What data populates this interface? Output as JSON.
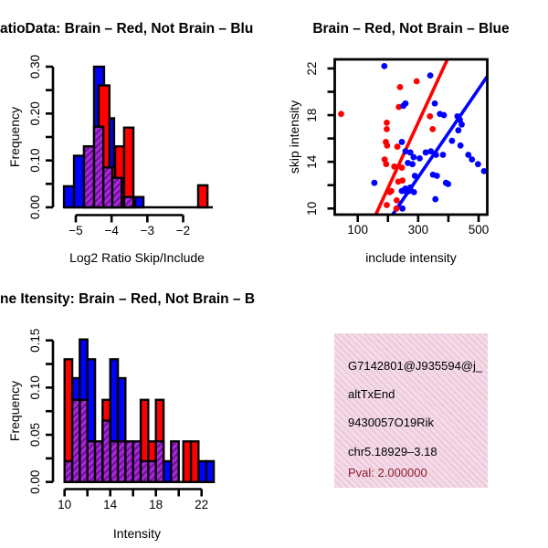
{
  "background": "#ffffff",
  "colors": {
    "red": "#ff0000",
    "blue": "#0000ff",
    "purple": "#aa28dd",
    "purple_stripe": "#6e1095",
    "axis": "#000000",
    "info_bg": "#f8d8ec",
    "info_stripe": "#b8b394",
    "pval_text": "#8e1b2e",
    "info_text": "#000000"
  },
  "chart_data": [
    {
      "id": "ratio-histogram",
      "type": "bar",
      "title": "atioData: Brain – Red, Not Brain – Blu",
      "xlabel": "Log2 Ratio Skip/Include",
      "ylabel": "Frequency",
      "xlim": [
        -5.33,
        -1.17
      ],
      "ylim": [
        0,
        0.3
      ],
      "grid": false,
      "x_ticks": [
        -5,
        -4,
        -3,
        -2
      ],
      "x_tick_labels": [
        {
          "v": -5,
          "label": "−5"
        },
        {
          "v": -4,
          "label": "−4"
        },
        {
          "v": -3,
          "label": "−3"
        },
        {
          "v": -2,
          "label": "−2"
        }
      ],
      "y_ticks": [
        0,
        0.05,
        0.1,
        0.15,
        0.2,
        0.25,
        0.3
      ],
      "y_tick_labels": [
        {
          "v": 0,
          "label": "0.00"
        },
        {
          "v": 0.1,
          "label": "0.10"
        },
        {
          "v": 0.2,
          "label": "0.20"
        },
        {
          "v": 0.3,
          "label": "0.30"
        }
      ],
      "series": [
        {
          "name": "Not Brain (blue)",
          "color_key": "blue",
          "hatched": false,
          "bars": [
            [
              -5.33,
              -5.05,
              0.045
            ],
            [
              -5.05,
              -4.77,
              0.11
            ],
            [
              -4.77,
              -4.49,
              0.13
            ],
            [
              -4.49,
              -4.21,
              0.3
            ],
            [
              -4.21,
              -3.93,
              0.19
            ],
            [
              -3.34,
              -3.11,
              0.022
            ]
          ]
        },
        {
          "name": "Brain (red)",
          "color_key": "red",
          "hatched": false,
          "bars": [
            [
              -4.36,
              -4.06,
              0.26
            ],
            [
              -4.06,
              -3.9,
              0.085
            ],
            [
              -3.9,
              -3.65,
              0.13
            ],
            [
              -3.65,
              -3.39,
              0.17
            ],
            [
              -1.58,
              -1.32,
              0.047
            ]
          ]
        },
        {
          "name": "Overlap (purple hatched)",
          "color_key": "purple",
          "hatched": true,
          "bars": [
            [
              -4.77,
              -4.49,
              0.13
            ],
            [
              -4.49,
              -4.23,
              0.172
            ],
            [
              -4.23,
              -3.98,
              0.085
            ],
            [
              -3.98,
              -3.72,
              0.063
            ],
            [
              -3.65,
              -3.39,
              0.022
            ]
          ]
        }
      ]
    },
    {
      "id": "intensity-scatter",
      "type": "scatter",
      "title": "Brain – Red, Not Brain – Blue",
      "xlabel": "include intensity",
      "ylabel": "skip intensity",
      "xlim": [
        50,
        540
      ],
      "ylim": [
        9.5,
        23
      ],
      "grid": false,
      "box": true,
      "x_ticks": [
        100,
        200,
        300,
        400,
        500
      ],
      "x_tick_labels": [
        {
          "v": 100,
          "label": "100"
        },
        {
          "v": 300,
          "label": "300"
        },
        {
          "v": 500,
          "label": "500"
        }
      ],
      "y_ticks": [
        10,
        12,
        14,
        16,
        18,
        20,
        22
      ],
      "y_tick_labels": [
        {
          "v": 10,
          "label": "10"
        },
        {
          "v": 14,
          "label": "14"
        },
        {
          "v": 18,
          "label": "18"
        },
        {
          "v": 22,
          "label": "22"
        }
      ],
      "series": [
        {
          "name": "Brain (red)",
          "color_key": "red",
          "fit_line": [
            [
              160,
              9.5
            ],
            [
              397,
              22.8
            ]
          ],
          "points": [
            [
              45,
              18.1
            ],
            [
              240,
              20.4
            ],
            [
              295,
              20.9
            ],
            [
              236,
              18.7
            ],
            [
              196,
              17.35
            ],
            [
              196,
              16.8
            ],
            [
              193,
              15.7
            ],
            [
              197,
              15.4
            ],
            [
              231,
              15.3
            ],
            [
              339,
              17.9
            ],
            [
              348,
              16.8
            ],
            [
              189,
              14.2
            ],
            [
              194,
              13.8
            ],
            [
              221,
              13.6
            ],
            [
              246,
              13.5
            ],
            [
              234,
              12.3
            ],
            [
              248,
              12.4
            ],
            [
              206,
              11.4
            ],
            [
              211,
              11.5
            ],
            [
              229,
              10.7
            ],
            [
              196,
              10.3
            ],
            [
              228,
              10.0
            ]
          ]
        },
        {
          "name": "Not Brain (blue)",
          "color_key": "blue",
          "fit_line": [
            [
              216,
              9.5
            ],
            [
              528,
              21.3
            ]
          ],
          "points": [
            [
              188,
              22.2
            ],
            [
              340,
              21.4
            ],
            [
              258,
              19.0
            ],
            [
              251,
              18.8
            ],
            [
              355,
              19.0
            ],
            [
              372,
              18.1
            ],
            [
              385,
              18.0
            ],
            [
              430,
              17.9
            ],
            [
              438,
              17.6
            ],
            [
              444,
              17.2
            ],
            [
              433,
              16.7
            ],
            [
              412,
              15.8
            ],
            [
              440,
              15.4
            ],
            [
              246,
              15.7
            ],
            [
              258,
              14.9
            ],
            [
              274,
              14.8
            ],
            [
              325,
              14.8
            ],
            [
              342,
              14.9
            ],
            [
              359,
              14.6
            ],
            [
              382,
              14.6
            ],
            [
              466,
              14.6
            ],
            [
              285,
              14.4
            ],
            [
              305,
              14.3
            ],
            [
              478,
              14.2
            ],
            [
              498,
              13.8
            ],
            [
              518,
              13.2
            ],
            [
              266,
              13.9
            ],
            [
              281,
              13.8
            ],
            [
              289,
              12.8
            ],
            [
              349,
              12.9
            ],
            [
              362,
              12.8
            ],
            [
              392,
              12.2
            ],
            [
              399,
              12.1
            ],
            [
              155,
              12.2
            ],
            [
              258,
              11.7
            ],
            [
              274,
              11.8
            ],
            [
              246,
              11.5
            ],
            [
              254,
              11.6
            ],
            [
              262,
              11.4
            ],
            [
              270,
              11.5
            ],
            [
              286,
              11.4
            ],
            [
              357,
              10.8
            ],
            [
              248,
              10.0
            ]
          ]
        }
      ]
    },
    {
      "id": "intensity-histogram",
      "type": "bar",
      "title": "ne Itensity: Brain – Red, Not Brain – B",
      "xlabel": "Intensity",
      "ylabel": "Frequency",
      "xlim": [
        10,
        23.1
      ],
      "ylim": [
        0,
        0.15
      ],
      "grid": false,
      "x_ticks": [
        10,
        12,
        14,
        16,
        18,
        20,
        22
      ],
      "x_tick_labels": [
        {
          "v": 10,
          "label": "10"
        },
        {
          "v": 14,
          "label": "14"
        },
        {
          "v": 18,
          "label": "18"
        },
        {
          "v": 22,
          "label": "22"
        }
      ],
      "y_ticks": [
        0,
        0.025,
        0.05,
        0.075,
        0.1,
        0.125,
        0.15
      ],
      "y_tick_labels": [
        {
          "v": 0,
          "label": "0.00"
        },
        {
          "v": 0.05,
          "label": "0.05"
        },
        {
          "v": 0.1,
          "label": "0.10"
        },
        {
          "v": 0.15,
          "label": "0.15"
        }
      ],
      "series": [
        {
          "name": "Not Brain (blue)",
          "color_key": "blue",
          "hatched": false,
          "bars": [
            [
              10.67,
              11.33,
              0.11
            ],
            [
              11.33,
              12.0,
              0.151
            ],
            [
              12.0,
              12.67,
              0.13
            ],
            [
              14.0,
              14.67,
              0.13
            ],
            [
              14.67,
              15.33,
              0.11
            ],
            [
              18.67,
              19.33,
              0.022
            ],
            [
              21.73,
              22.4,
              0.022
            ],
            [
              22.4,
              23.07,
              0.022
            ]
          ]
        },
        {
          "name": "Brain (red)",
          "color_key": "red",
          "hatched": false,
          "bars": [
            [
              10.0,
              10.67,
              0.13
            ],
            [
              13.33,
              14.0,
              0.087
            ],
            [
              16.67,
              17.33,
              0.087
            ],
            [
              17.33,
              18.0,
              0.043
            ],
            [
              18.0,
              18.67,
              0.087
            ],
            [
              20.4,
              21.07,
              0.043
            ],
            [
              21.07,
              21.73,
              0.043
            ]
          ]
        },
        {
          "name": "Overlap (purple hatched)",
          "color_key": "purple",
          "hatched": true,
          "bars": [
            [
              10.0,
              10.67,
              0.022
            ],
            [
              10.67,
              11.33,
              0.087
            ],
            [
              11.33,
              12.0,
              0.087
            ],
            [
              12.0,
              12.67,
              0.043
            ],
            [
              12.67,
              13.33,
              0.043
            ],
            [
              13.33,
              14.0,
              0.065
            ],
            [
              14.0,
              14.67,
              0.043
            ],
            [
              14.67,
              15.33,
              0.043
            ],
            [
              15.33,
              16.0,
              0.043
            ],
            [
              16.0,
              16.67,
              0.043
            ],
            [
              16.67,
              17.33,
              0.022
            ],
            [
              17.33,
              18.0,
              0.022
            ],
            [
              18.0,
              18.67,
              0.043
            ],
            [
              19.33,
              20.0,
              0.043
            ]
          ]
        }
      ]
    }
  ],
  "info_box": {
    "lines": [
      "G7142801@J935594@j_",
      "altTxEnd",
      "9430057O19Rik",
      "chr5.18929–3.18"
    ],
    "pval": "Pval: 2.000000"
  }
}
